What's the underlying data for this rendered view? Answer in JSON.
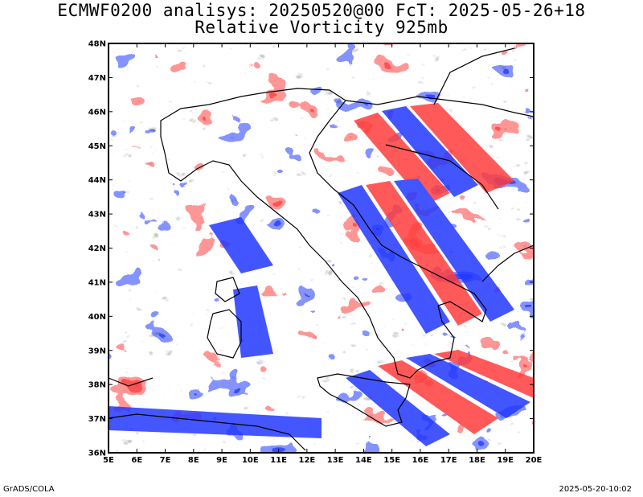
{
  "title_line1": "ECMWF0200 analisys: 20250520@00 FcT: 2025-05-26+18",
  "title_line2": "Relative Vorticity 925mb",
  "footer_left": "GrADS/COLA",
  "footer_right": "2025-05-20-10:02",
  "colors": {
    "positive": "#ff3d3d",
    "negative": "#2338ff",
    "coast": "#000000",
    "frame": "#000000"
  },
  "map": {
    "lon_range": [
      5,
      20
    ],
    "lat_range": [
      36,
      48
    ],
    "lon_labels": [
      "5E",
      "6E",
      "7E",
      "8E",
      "9E",
      "10E",
      "11E",
      "12E",
      "13E",
      "14E",
      "15E",
      "16E",
      "17E",
      "18E",
      "19E",
      "20E"
    ],
    "lat_labels": [
      "36N",
      "37N",
      "38N",
      "39N",
      "40N",
      "41N",
      "42N",
      "43N",
      "44N",
      "45N",
      "46N",
      "47N",
      "48N"
    ]
  }
}
